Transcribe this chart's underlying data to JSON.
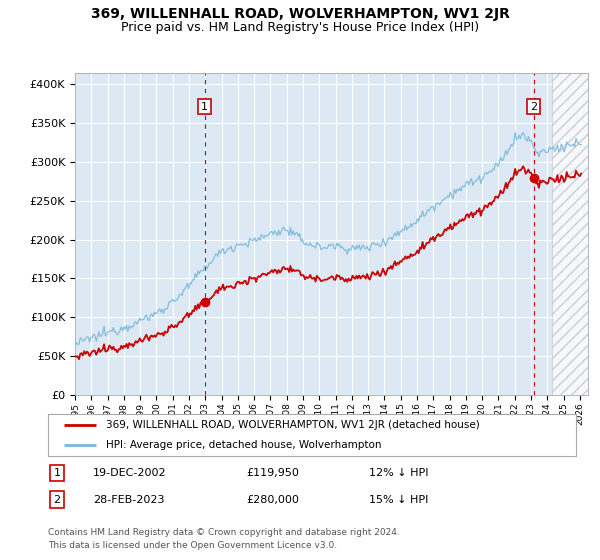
{
  "title": "369, WILLENHALL ROAD, WOLVERHAMPTON, WV1 2JR",
  "subtitle": "Price paid vs. HM Land Registry's House Price Index (HPI)",
  "ylabel_ticks": [
    "£0",
    "£50K",
    "£100K",
    "£150K",
    "£200K",
    "£250K",
    "£300K",
    "£350K",
    "£400K"
  ],
  "ytick_values": [
    0,
    50000,
    100000,
    150000,
    200000,
    250000,
    300000,
    350000,
    400000
  ],
  "ylim": [
    0,
    415000
  ],
  "xlim_start": 1995.0,
  "xlim_end": 2026.5,
  "hpi_color": "#7ab8d9",
  "price_color": "#cc0000",
  "marker1_date": 2002.96,
  "marker1_price": 119950,
  "marker2_date": 2023.16,
  "marker2_price": 280000,
  "legend_label1": "369, WILLENHALL ROAD, WOLVERHAMPTON, WV1 2JR (detached house)",
  "legend_label2": "HPI: Average price, detached house, Wolverhampton",
  "table_row1": [
    "1",
    "19-DEC-2002",
    "£119,950",
    "12% ↓ HPI"
  ],
  "table_row2": [
    "2",
    "28-FEB-2023",
    "£280,000",
    "15% ↓ HPI"
  ],
  "footer": "Contains HM Land Registry data © Crown copyright and database right 2024.\nThis data is licensed under the Open Government Licence v3.0.",
  "plot_bg": "#dce9f5",
  "grid_color": "#ffffff",
  "title_fontsize": 10,
  "subtitle_fontsize": 9
}
